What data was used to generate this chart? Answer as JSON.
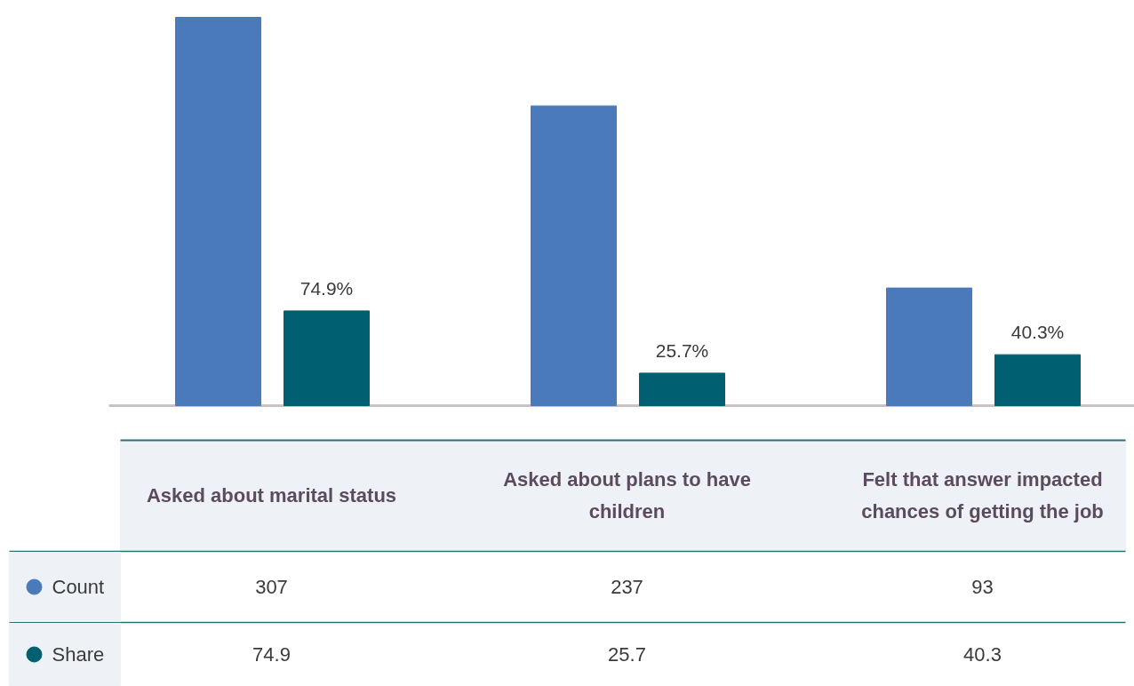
{
  "chart_data": {
    "type": "bar",
    "categories": [
      "Asked about marital status",
      "Asked about plans to have children",
      "Felt that answer impacted chances of getting the job"
    ],
    "series": [
      {
        "name": "Count",
        "color": "#4a7aba",
        "values": [
          307,
          237,
          93
        ]
      },
      {
        "name": "Share",
        "color": "#005f70",
        "values": [
          74.9,
          25.7,
          40.3
        ]
      }
    ],
    "annotations": [
      "74.9%",
      "25.7%",
      "40.3%"
    ],
    "data_labels": true,
    "legend": "bottom",
    "grid": false,
    "tick_labels": false
  }
}
